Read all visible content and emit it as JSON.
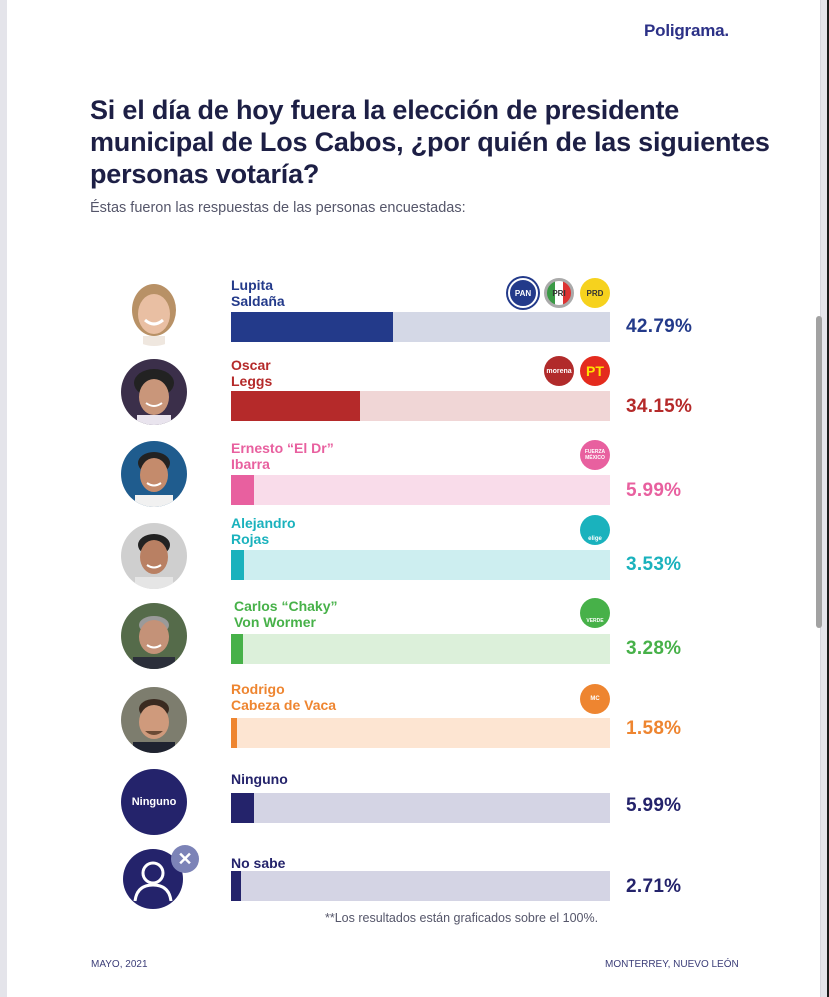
{
  "brand": {
    "name": "Poligrama",
    "dot": "."
  },
  "header": {
    "title": "Si el día de hoy fuera la elección de presidente municipal de Los Cabos, ¿por quién de las siguientes personas votaría?",
    "subtitle": "Éstas fueron las respuestas de las personas encuestadas:"
  },
  "chart_data": {
    "type": "bar",
    "orientation": "horizontal",
    "title": "Si el día de hoy fuera la elección de presidente municipal de Los Cabos, ¿por quién de las siguientes personas votaría?",
    "xlabel": "",
    "ylabel": "",
    "xlim": [
      0,
      100
    ],
    "grid": false,
    "categories": [
      "Lupita Saldaña",
      "Oscar Leggs",
      "Ernesto “El Dr” Ibarra",
      "Alejandro Rojas",
      "Carlos “Chaky” Von Wormer",
      "Rodrigo Cabeza de Vaca",
      "Ninguno",
      "No sabe"
    ],
    "values": [
      42.79,
      34.15,
      5.99,
      3.53,
      3.28,
      1.58,
      5.99,
      2.71
    ],
    "value_labels": [
      "42.79%",
      "34.15%",
      "5.99%",
      "3.53%",
      "3.28%",
      "1.58%",
      "5.99%",
      "2.71%"
    ],
    "note": "**Los resultados están graficados sobre el 100%."
  },
  "candidates": [
    {
      "line1": "Lupita",
      "line2": "Saldaña",
      "pct": "42.79%",
      "value": 42.79,
      "color": "#233a8a",
      "track": "#d4d8e6",
      "text_color": "#233a8a",
      "parties": [
        "PAN",
        "PRI",
        "PRD"
      ]
    },
    {
      "line1": "Oscar",
      "line2": "Leggs",
      "pct": "34.15%",
      "value": 34.15,
      "color": "#b52a2a",
      "track": "#f0d6d6",
      "text_color": "#b52a2a",
      "parties": [
        "morena",
        "PT"
      ]
    },
    {
      "line1": "Ernesto “El Dr”",
      "line2": "Ibarra",
      "pct": "5.99%",
      "value": 5.99,
      "color": "#e8609f",
      "track": "#f9dcea",
      "text_color": "#e8609f",
      "parties": [
        "FUERZA MÉXICO"
      ]
    },
    {
      "line1": "Alejandro",
      "line2": "Rojas",
      "pct": "3.53%",
      "value": 3.53,
      "color": "#1ab2bd",
      "track": "#cdeef0",
      "text_color": "#1ab2bd",
      "parties": [
        "elige"
      ]
    },
    {
      "line1": "Carlos “Chaky”",
      "line2": "Von Wormer",
      "pct": "3.28%",
      "value": 3.28,
      "color": "#47b149",
      "track": "#dcf0da",
      "text_color": "#47b149",
      "parties": [
        "VERDE"
      ]
    },
    {
      "line1": "Rodrigo",
      "line2": "Cabeza de Vaca",
      "pct": "1.58%",
      "value": 1.58,
      "color": "#ee8530",
      "track": "#fde5d2",
      "text_color": "#ee8530",
      "parties": [
        "MC"
      ]
    },
    {
      "line1": "Ninguno",
      "line2": "",
      "pct": "5.99%",
      "value": 5.99,
      "color": "#24236b",
      "track": "#d4d4e4",
      "text_color": "#24236b",
      "parties": [],
      "avatar_label": "Ninguno"
    },
    {
      "line1": "No sabe",
      "line2": "",
      "pct": "2.71%",
      "value": 2.71,
      "color": "#24236b",
      "track": "#d4d4e4",
      "text_color": "#24236b",
      "parties": []
    }
  ],
  "footer": {
    "note": "**Los resultados están graficados sobre el 100%.",
    "date": "MAYO, 2021",
    "location": "MONTERREY, NUEVO LEÓN"
  }
}
